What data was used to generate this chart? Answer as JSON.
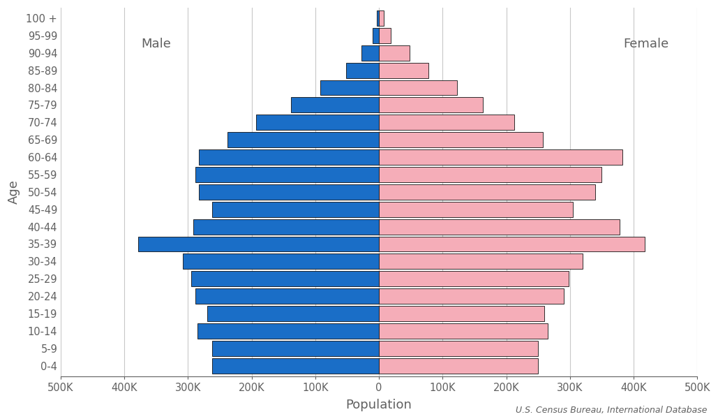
{
  "xlabel": "Population",
  "ylabel": "Age",
  "source": "U.S. Census Bureau, International Database",
  "age_groups": [
    "0-4",
    "5-9",
    "10-14",
    "15-19",
    "20-24",
    "25-29",
    "30-34",
    "35-39",
    "40-44",
    "45-49",
    "50-54",
    "55-59",
    "60-64",
    "65-69",
    "70-74",
    "75-79",
    "80-84",
    "85-89",
    "90-94",
    "95-99",
    "100 +"
  ],
  "male": [
    262000,
    262000,
    285000,
    270000,
    288000,
    295000,
    308000,
    378000,
    292000,
    262000,
    283000,
    288000,
    283000,
    238000,
    193000,
    138000,
    92000,
    52000,
    28000,
    10000,
    3000
  ],
  "female": [
    250000,
    250000,
    265000,
    260000,
    290000,
    298000,
    320000,
    418000,
    378000,
    305000,
    340000,
    350000,
    382000,
    258000,
    213000,
    163000,
    123000,
    78000,
    48000,
    18000,
    8000
  ],
  "male_color": "#1a6ec7",
  "female_color": "#f5adb8",
  "bar_edge_color": "#111111",
  "background_color": "#ffffff",
  "grid_color": "#c8c8c8",
  "text_color": "#606060",
  "label_fontsize": 13,
  "tick_fontsize": 10.5,
  "source_fontsize": 9,
  "male_label": "Male",
  "female_label": "Female",
  "xlim": 500000,
  "xticks": [
    -500000,
    -400000,
    -300000,
    -200000,
    -100000,
    0,
    100000,
    200000,
    300000,
    400000,
    500000
  ],
  "xtick_labels": [
    "500K",
    "400K",
    "300K",
    "200K",
    "100K",
    "0",
    "100K",
    "200K",
    "300K",
    "400K",
    "500K"
  ]
}
